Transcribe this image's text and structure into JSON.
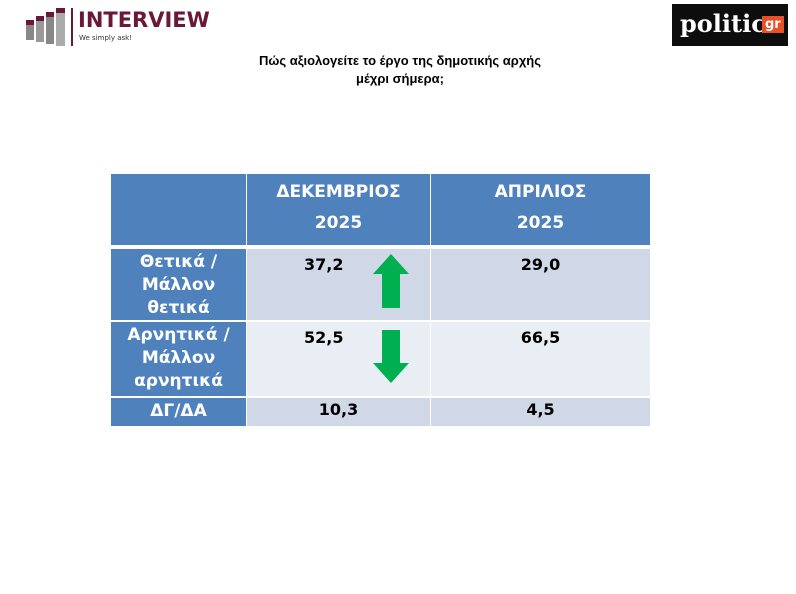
{
  "logos": {
    "left": {
      "brand": "INTERVIEW",
      "tagline": "We simply ask!",
      "color": "#6B1737"
    },
    "right": {
      "brand": "politic",
      "suffix": "gr",
      "accent": "#E8502A"
    }
  },
  "title": {
    "line1": "Πώς αξιολογείτε το έργο της δημοτικής αρχής",
    "line2": "μέχρι σήμερα;"
  },
  "table": {
    "columns": [
      {
        "line1": "ΔΕΚΕΜΒΡΙΟΣ",
        "line2": "2025"
      },
      {
        "line1": "ΑΠΡΙΛΙΟΣ",
        "line2": "2025"
      }
    ],
    "rows": [
      {
        "label": [
          "Θετικά /",
          "Μάλλον",
          "θετικά"
        ],
        "values": [
          "37,2",
          "29,0"
        ],
        "trend": "arrow-up-icon"
      },
      {
        "label": [
          "Αρνητικά /",
          "Μάλλον",
          "αρνητικά"
        ],
        "values": [
          "52,5",
          "66,5"
        ],
        "trend": "arrow-down-icon"
      },
      {
        "label": [
          "ΔΓ/ΔΑ"
        ],
        "values": [
          "10,3",
          "4,5"
        ]
      }
    ],
    "colors": {
      "header": "#4F81BD",
      "row_dark": "#D0D8E8",
      "row_light": "#E9EDF4",
      "arrow": "#00B050"
    }
  }
}
